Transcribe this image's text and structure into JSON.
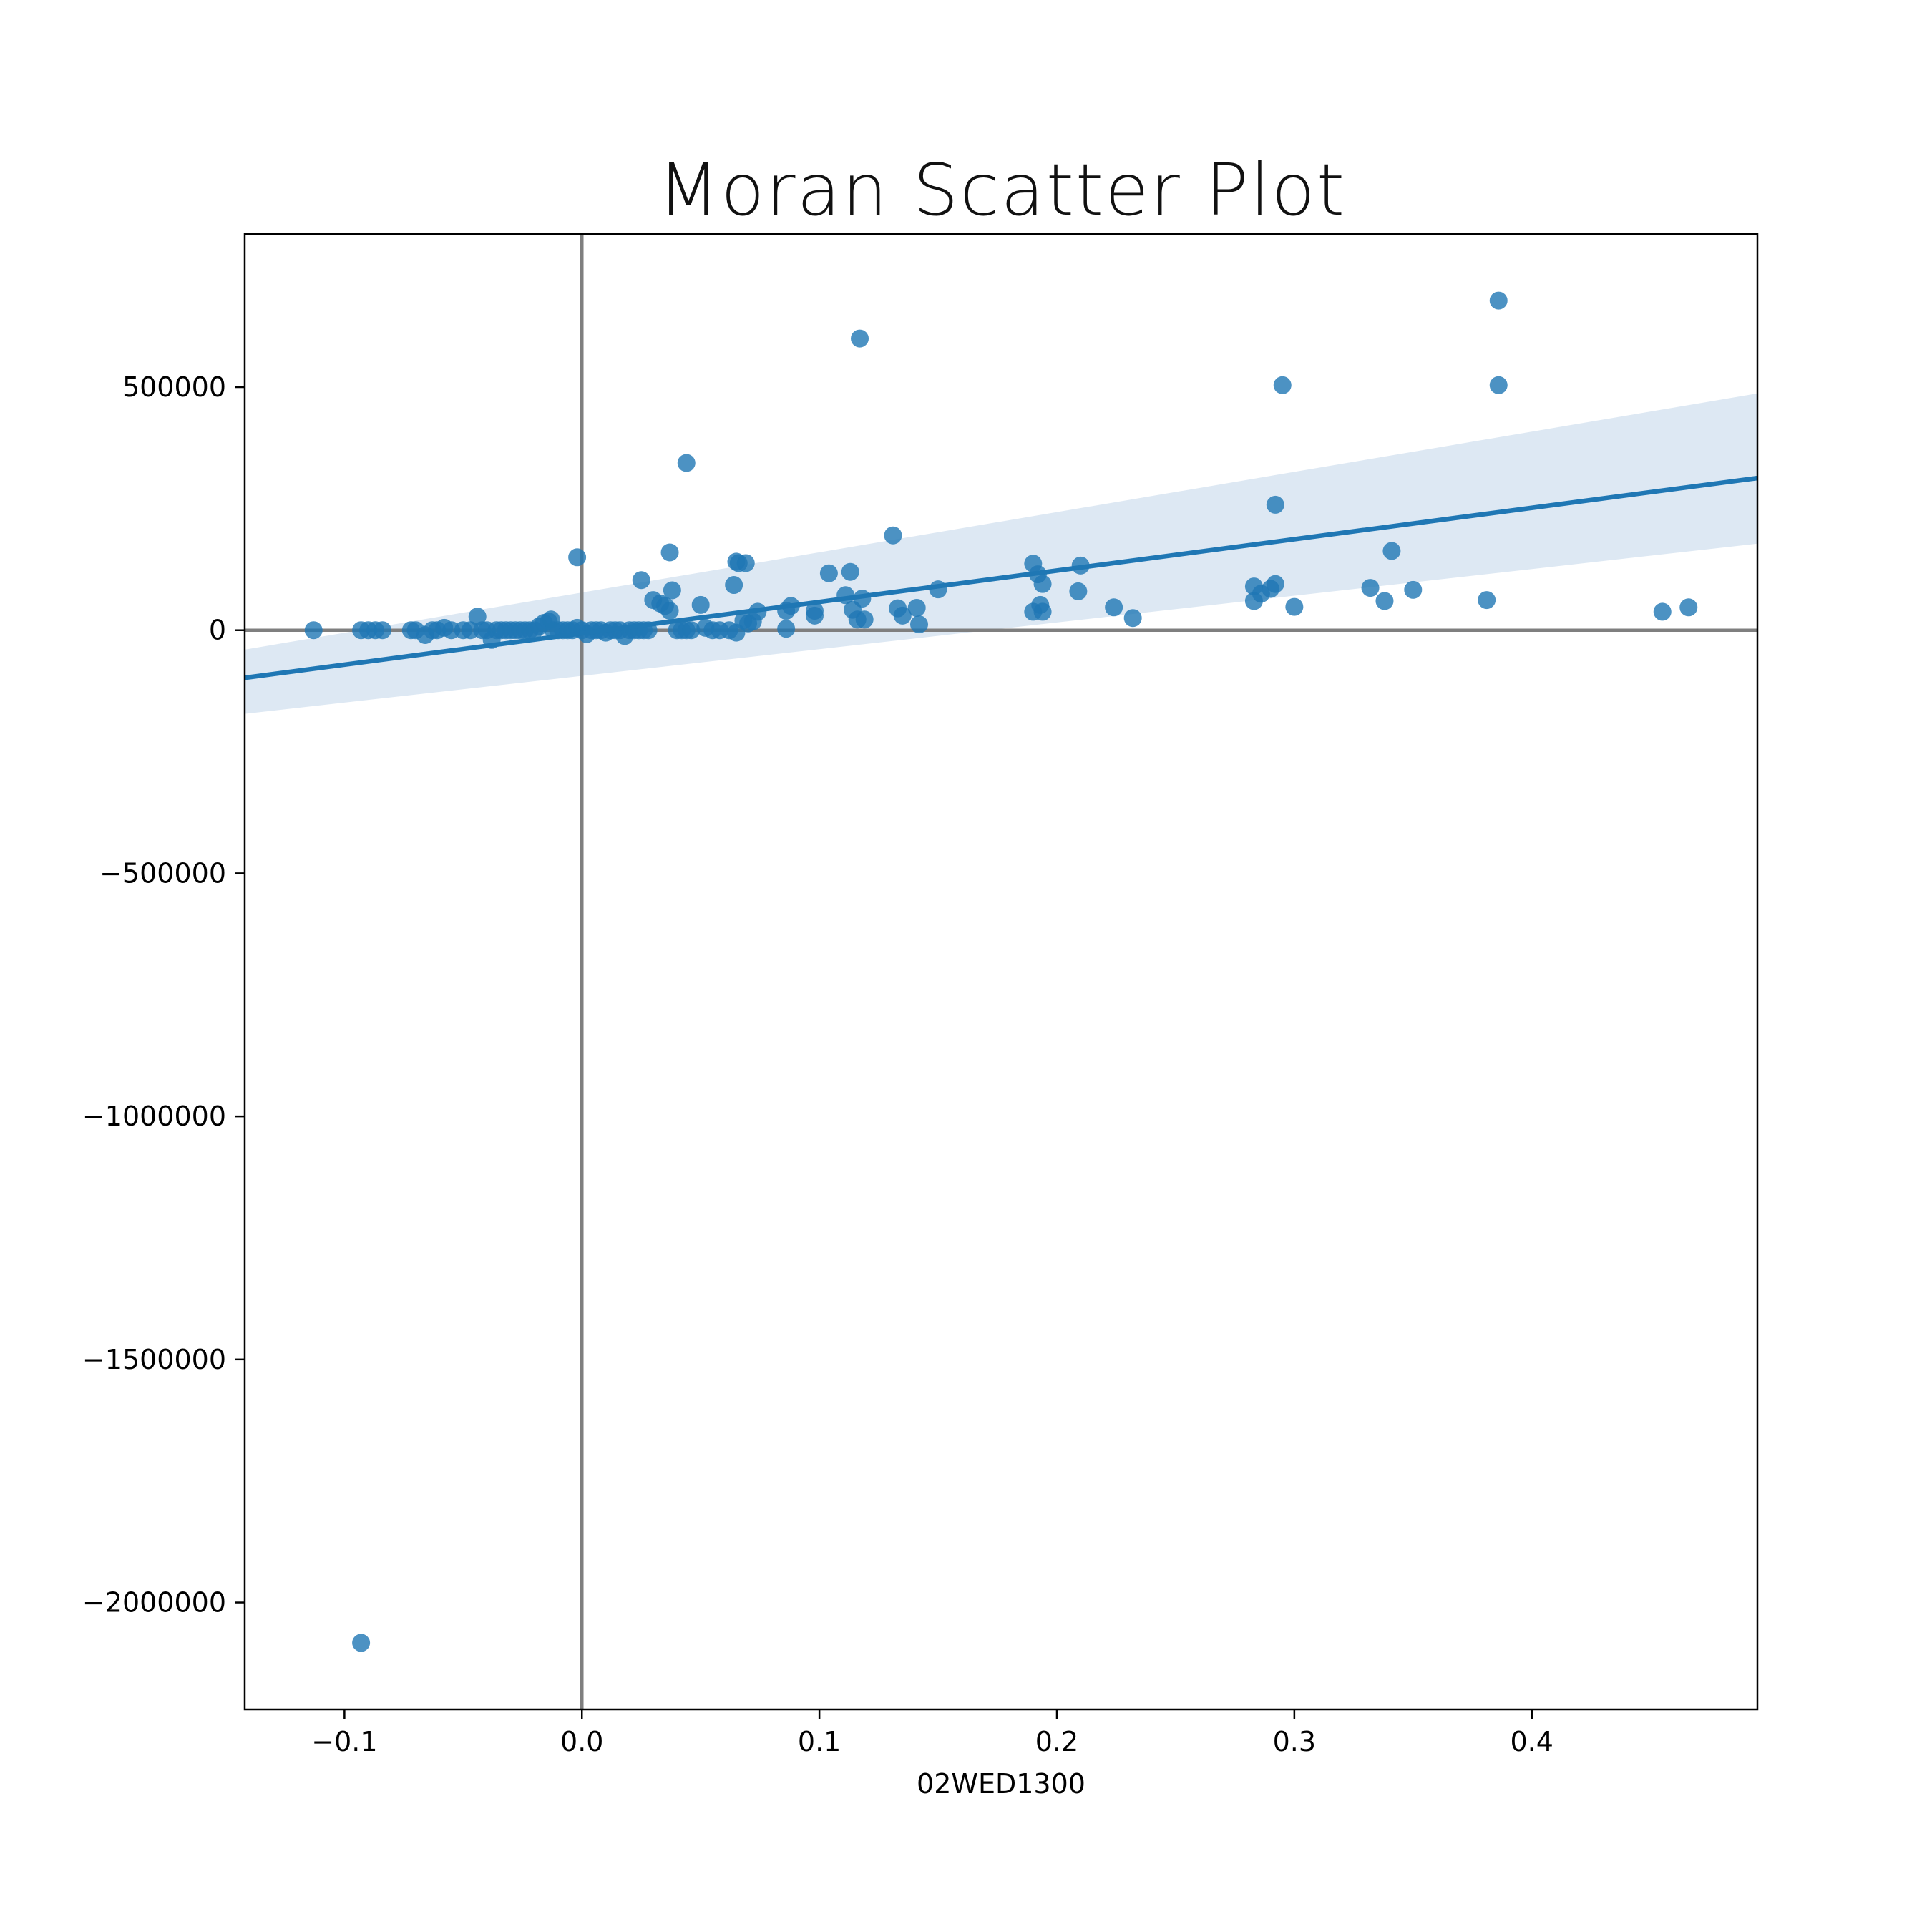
{
  "chart_data": {
    "type": "scatter",
    "title": "Moran Scatter Plot",
    "xlabel": "02WED1300",
    "ylabel": "",
    "xlim": [
      -0.142,
      0.495
    ],
    "ylim": [
      -2220000,
      815000
    ],
    "xticks": [
      -0.1,
      0.0,
      0.1,
      0.2,
      0.3,
      0.4
    ],
    "xtick_labels": [
      "−0.1",
      "0.0",
      "0.1",
      "0.2",
      "0.3",
      "0.4"
    ],
    "yticks": [
      500000,
      0,
      -500000,
      -1000000,
      -1500000,
      -2000000
    ],
    "ytick_labels": [
      "500000",
      "0",
      "−500000",
      "−1000000",
      "−1500000",
      "−2000000"
    ],
    "reference_lines": {
      "x": 0,
      "y": 0
    },
    "regression": {
      "x_range": [
        -0.142,
        0.495
      ],
      "y_range": [
        -98000,
        313000
      ],
      "ci_lower": [
        -172000,
        178000
      ],
      "ci_upper": [
        -40000,
        487000
      ]
    },
    "grid": false,
    "legend": "none",
    "colors": {
      "points": "#1f77b4",
      "line": "#1f77b4",
      "band": "#a9c6e2",
      "reference": "#7f7f7f"
    },
    "x": [
      -0.113,
      -0.093,
      -0.09,
      -0.087,
      -0.084,
      -0.072,
      -0.07,
      -0.066,
      -0.063,
      -0.061,
      -0.058,
      -0.055,
      -0.05,
      -0.047,
      -0.044,
      -0.042,
      -0.04,
      -0.038,
      -0.036,
      -0.034,
      -0.032,
      -0.03,
      -0.028,
      -0.026,
      -0.024,
      -0.022,
      -0.02,
      -0.018,
      -0.016,
      -0.014,
      -0.013,
      -0.012,
      -0.01,
      -0.008,
      -0.006,
      -0.004,
      -0.002,
      -0.002,
      0.0,
      0.002,
      0.004,
      0.006,
      0.008,
      0.01,
      0.012,
      0.014,
      0.016,
      0.018,
      0.02,
      0.022,
      0.024,
      0.026,
      0.028,
      0.025,
      0.03,
      0.033,
      0.035,
      0.037,
      0.038,
      0.04,
      0.042,
      0.044,
      0.046,
      0.05,
      0.052,
      0.055,
      0.058,
      0.062,
      0.064,
      0.065,
      0.066,
      0.068,
      0.07,
      0.072,
      0.074,
      0.065,
      0.069,
      0.086,
      0.086,
      0.088,
      0.098,
      0.098,
      0.104,
      0.111,
      0.113,
      0.114,
      0.116,
      0.118,
      0.117,
      0.119,
      0.131,
      0.133,
      0.135,
      0.141,
      0.142,
      0.15,
      0.19,
      0.192,
      0.19,
      0.194,
      0.193,
      0.194,
      0.209,
      0.21,
      0.224,
      0.232,
      0.283,
      0.283,
      0.286,
      0.29,
      0.292,
      0.292,
      0.295,
      0.3,
      0.332,
      0.338,
      0.341,
      0.35,
      0.381,
      0.386,
      0.386,
      0.455,
      0.466,
      0.037,
      0.044,
      -0.093
    ],
    "y": [
      0,
      0,
      0,
      0,
      0,
      0,
      0,
      -10000,
      0,
      0,
      5000,
      0,
      0,
      0,
      28000,
      0,
      0,
      -20000,
      0,
      0,
      0,
      0,
      0,
      0,
      0,
      0,
      0,
      8000,
      15000,
      18000,
      22000,
      0,
      0,
      0,
      0,
      0,
      150000,
      5000,
      0,
      -8000,
      0,
      0,
      0,
      -5000,
      0,
      0,
      0,
      -12000,
      0,
      0,
      0,
      0,
      0,
      103000,
      62000,
      55000,
      50000,
      40000,
      82000,
      0,
      0,
      0,
      0,
      52000,
      5000,
      0,
      0,
      0,
      93000,
      141000,
      138000,
      20000,
      14000,
      18000,
      38000,
      -5000,
      138000,
      3000,
      40000,
      50000,
      30000,
      40000,
      117000,
      72000,
      120000,
      42000,
      22000,
      65000,
      600000,
      22000,
      195000,
      45000,
      30000,
      46000,
      12000,
      84000,
      137000,
      115000,
      38000,
      95000,
      52000,
      38000,
      80000,
      133000,
      47000,
      25000,
      90000,
      60000,
      75000,
      85000,
      258000,
      95000,
      504000,
      48000,
      87000,
      60000,
      163000,
      83000,
      62000,
      678000,
      504000,
      38000,
      47000,
      160000,
      344000,
      -2083000
    ]
  }
}
